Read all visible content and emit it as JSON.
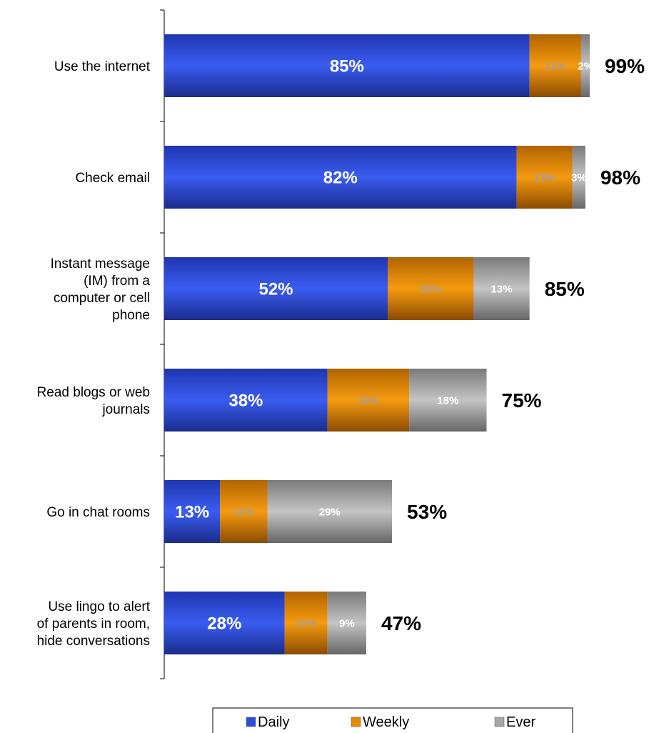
{
  "chart_data": {
    "type": "bar",
    "orientation": "horizontal",
    "stacked": true,
    "categories": [
      [
        "Use the internet"
      ],
      [
        "Check email"
      ],
      [
        "Instant message",
        "(IM) from a",
        "computer or cell",
        "phone"
      ],
      [
        "Read blogs or web",
        "journals"
      ],
      [
        "Go in chat rooms"
      ],
      [
        "Use lingo to alert",
        "of parents in room,",
        "hide conversations"
      ]
    ],
    "series": [
      {
        "name": "Daily",
        "color": "#2e4ed8",
        "values": [
          85,
          82,
          52,
          38,
          13,
          28
        ],
        "labels": [
          "85%",
          "82%",
          "52%",
          "38%",
          "13%",
          "28%"
        ]
      },
      {
        "name": "Weekly",
        "color": "#e88a00",
        "values": [
          12,
          13,
          20,
          19,
          11,
          10
        ],
        "labels": [
          "12%",
          "13%",
          "20%",
          "19%",
          "11%",
          "10%"
        ]
      },
      {
        "name": "Ever",
        "color": "#a6a6a6",
        "values": [
          2,
          3,
          13,
          18,
          29,
          9
        ],
        "labels": [
          "2%",
          "3%",
          "13%",
          "18%",
          "29%",
          "9%"
        ]
      }
    ],
    "totals": [
      "99%",
      "98%",
      "85%",
      "75%",
      "53%",
      "47%"
    ],
    "xlim": [
      0,
      100
    ],
    "grid": false,
    "legend_position": "bottom"
  }
}
